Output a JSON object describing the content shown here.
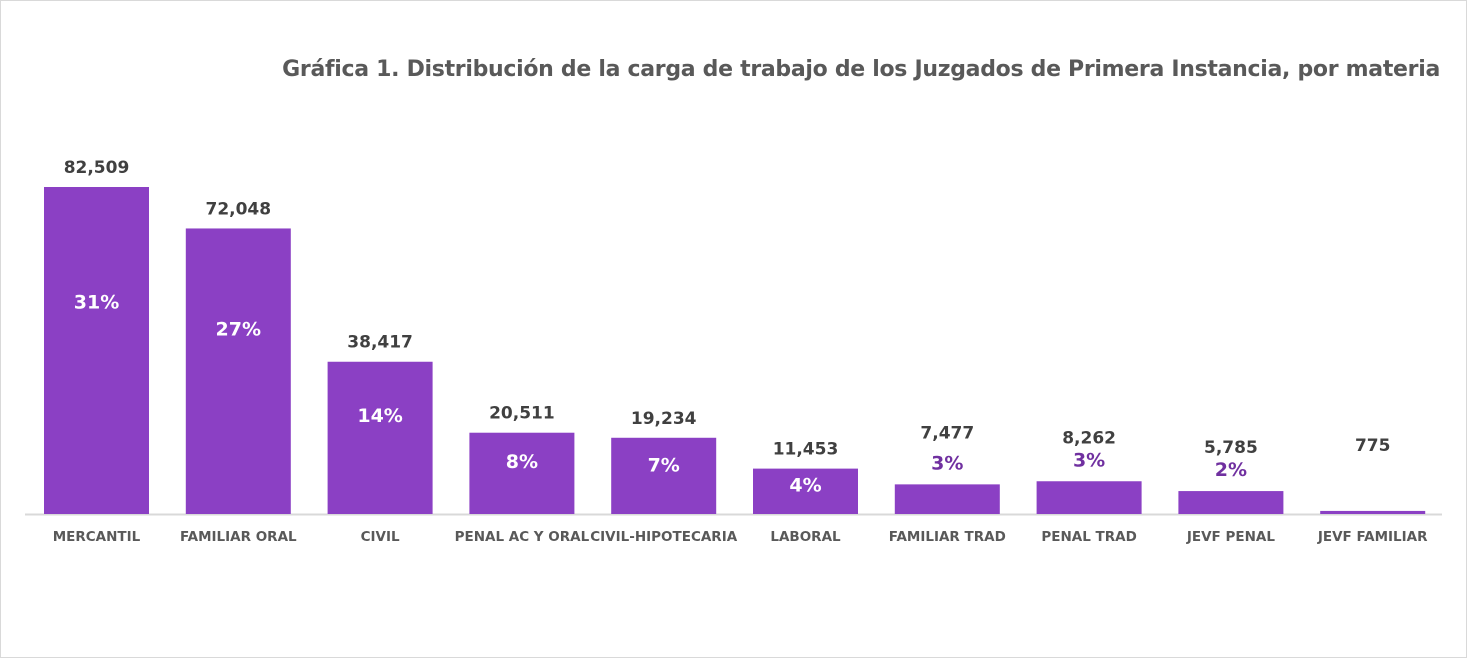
{
  "chart_data": {
    "type": "bar",
    "title": "Gráfica 1. Distribución de la carga de trabajo de los Juzgados de Primera Instancia, por materia",
    "categories": [
      "MERCANTIL",
      "FAMILIAR ORAL",
      "CIVIL",
      "PENAL AC Y ORAL",
      "CIVIL-HIPOTECARIA",
      "LABORAL",
      "FAMILIAR TRAD",
      "PENAL TRAD",
      "JEVF PENAL",
      "JEVF FAMILIAR"
    ],
    "values": [
      82509,
      72048,
      38417,
      20511,
      19234,
      11453,
      7477,
      8262,
      5785,
      775
    ],
    "value_labels": [
      "82,509",
      "72,048",
      "38,417",
      "20,511",
      "19,234",
      "11,453",
      "7,477",
      "8,262",
      "5,785",
      "775"
    ],
    "percent_labels": [
      "31%",
      "27%",
      "14%",
      "8%",
      "7%",
      "4%",
      "3%",
      "3%",
      "2%",
      ""
    ],
    "xlabel": "",
    "ylabel": "",
    "ylim": [
      0,
      82509
    ],
    "grid": false,
    "legend": "none",
    "colors": {
      "bar": "#8B40C4",
      "pct_inside": "#ffffff",
      "pct_outside": "#7030A0",
      "axis": "#d9d9d9"
    }
  }
}
